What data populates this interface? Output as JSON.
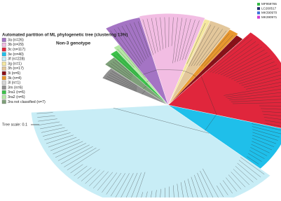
{
  "title": "Automated partition of ML phylogenetic tree (clustering 13%)",
  "legend": [
    {
      "label": "3a (n=26)",
      "color": "#a474c4"
    },
    {
      "label": "3b (n=29)",
      "color": "#f2bde3"
    },
    {
      "label": "3c (n=117)",
      "color": "#e0263c"
    },
    {
      "label": "3e (n=40)",
      "color": "#1fbfea"
    },
    {
      "label": "3f (n=228)",
      "color": "#c8edf6"
    },
    {
      "label": "3g (n=1)",
      "color": "#f5e7a0"
    },
    {
      "label": "3h (n=17)",
      "color": "#e3c79b"
    },
    {
      "label": "3i (n=6)",
      "color": "#8a1018"
    },
    {
      "label": "3k (n=4)",
      "color": "#e8972e"
    },
    {
      "label": "3l (n=1)",
      "color": "#d6d6d6"
    },
    {
      "label": "3m (n=6)",
      "color": "#8f8f8f"
    },
    {
      "label": "3ra1 (n=6)",
      "color": "#3cc24a"
    },
    {
      "label": "3ra2 (n=6)",
      "color": "#b6e8a6"
    },
    {
      "label": "3ra not classified (n=7)",
      "color": "#7fa07a"
    }
  ],
  "annotation": "Non-3 genotype",
  "tree_scale": "Tree scale: 0.1",
  "references": [
    {
      "label": "MF959765",
      "color": "#33b845"
    },
    {
      "label": "LC260517",
      "color": "#1d2b6b"
    },
    {
      "label": "MK390970",
      "color": "#3a6fd8"
    },
    {
      "label": "MK390971",
      "color": "#d23bd2"
    }
  ]
}
